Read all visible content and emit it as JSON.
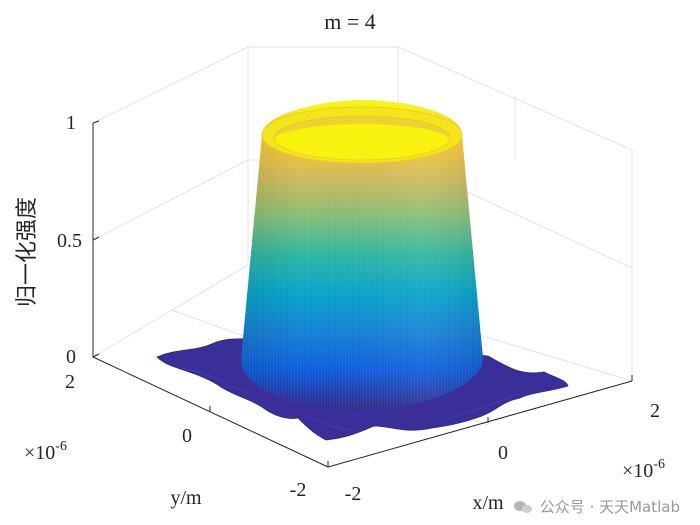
{
  "chart_data": {
    "type": "surface3d",
    "title": "m = 4",
    "xlabel": "x/m",
    "ylabel": "y/m",
    "zlabel": "归一化强度",
    "x_ticks": [
      "-2",
      "0",
      "2"
    ],
    "y_ticks": [
      "-2",
      "0",
      "2"
    ],
    "z_ticks": [
      "0",
      "0.5",
      "1"
    ],
    "x_exponent": "×10",
    "x_exponent_power": "-6",
    "y_exponent": "×10",
    "y_exponent_power": "-6",
    "xlim": [
      -2e-06,
      2e-06
    ],
    "ylim": [
      -2e-06,
      2e-06
    ],
    "zlim": [
      0,
      1
    ],
    "grid": true,
    "colormap": "parula",
    "colormap_colors": [
      "#352a87",
      "#0f5cdd",
      "#1481d6",
      "#06a4ca",
      "#2eb7a4",
      "#87bf77",
      "#d1bb59",
      "#fec832",
      "#f9fb0e"
    ],
    "surface": {
      "shape": "flat-top ring beam (super-Gaussian, order m = 4)",
      "order_m": 4,
      "plateau_value": 1,
      "base_value": 0,
      "beam_radius_approx": 1.05e-06,
      "top_radius_approx": 9e-07
    }
  },
  "watermark": {
    "text": "公众号 · 天天Matlab"
  }
}
